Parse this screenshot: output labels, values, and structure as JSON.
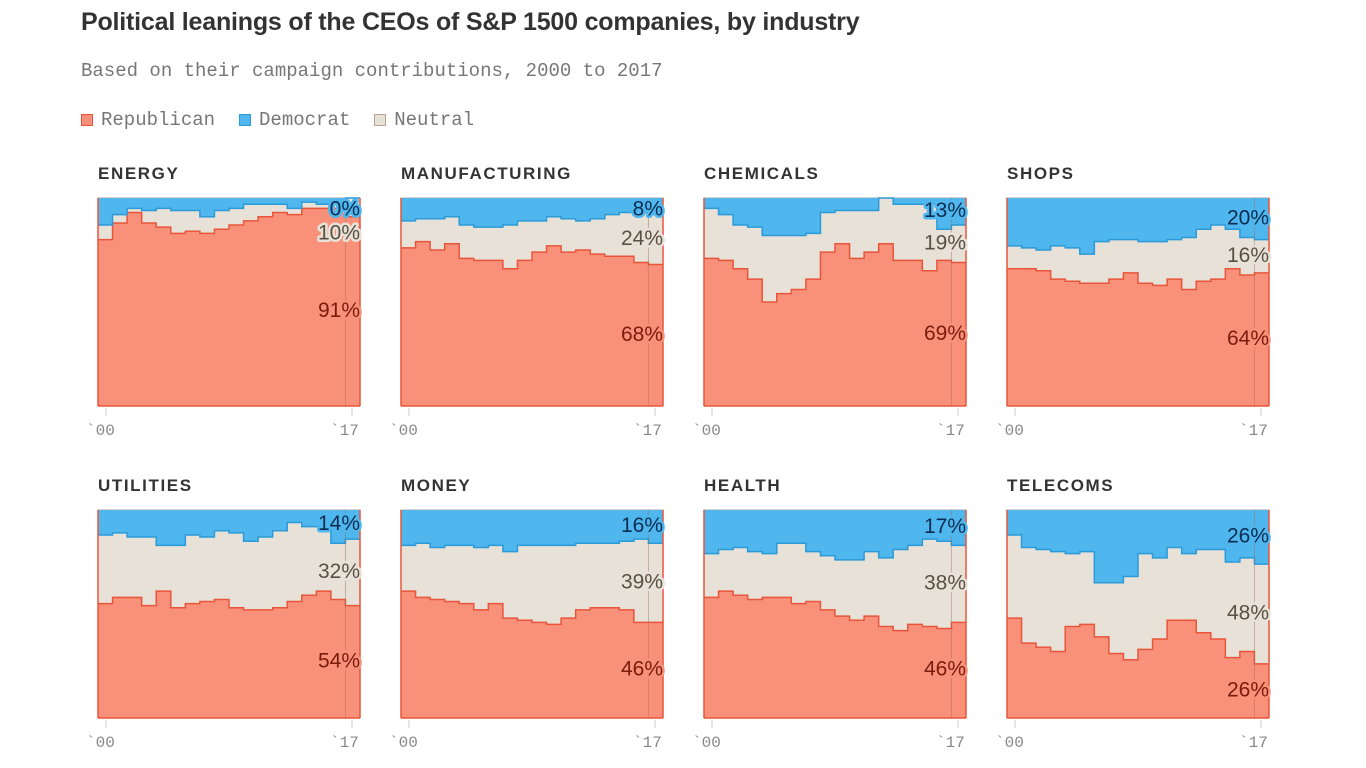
{
  "title": "Political leanings of the CEOs of S&P 1500 companies, by industry",
  "subtitle": "Based on their campaign contributions, 2000 to 2017",
  "legend": [
    {
      "label": "Republican",
      "color": "#f9907a",
      "border": "#e8553a"
    },
    {
      "label": "Democrat",
      "color": "#4fb6ee",
      "border": "#2a9ad8"
    },
    {
      "label": "Neutral",
      "color": "#e8e1d8",
      "border": "#b5a692"
    }
  ],
  "chart_data": {
    "type": "area",
    "stacked": true,
    "step": true,
    "x": [
      2000,
      2001,
      2002,
      2003,
      2004,
      2005,
      2006,
      2007,
      2008,
      2009,
      2010,
      2011,
      2012,
      2013,
      2014,
      2015,
      2016,
      2017
    ],
    "x_tick_labels": [
      "`00",
      "`17"
    ],
    "ylim": [
      0,
      100
    ],
    "unit": "%",
    "series_order": [
      "Republican",
      "Neutral",
      "Democrat"
    ],
    "panels": [
      {
        "title": "ENERGY",
        "republican": [
          80,
          88,
          93,
          88,
          86,
          83,
          84,
          83,
          85,
          87,
          89,
          91,
          93,
          92,
          95,
          95,
          95,
          91
        ],
        "democrat": [
          13,
          8,
          5,
          6,
          5,
          6,
          6,
          9,
          6,
          5,
          3,
          3,
          3,
          5,
          2,
          3,
          3,
          0
        ],
        "labels": {
          "democrat": "0%",
          "neutral": "10%",
          "republican": "91%"
        }
      },
      {
        "title": "MANUFACTURING",
        "republican": [
          76,
          79,
          75,
          78,
          71,
          70,
          70,
          66,
          70,
          74,
          77,
          74,
          75,
          73,
          72,
          72,
          69,
          68
        ],
        "democrat": [
          11,
          10,
          10,
          9,
          13,
          14,
          14,
          13,
          11,
          11,
          9,
          10,
          11,
          10,
          8,
          7,
          7,
          8
        ],
        "labels": {
          "democrat": "8%",
          "neutral": "24%",
          "republican": "68%"
        }
      },
      {
        "title": "CHEMICALS",
        "republican": [
          71,
          70,
          66,
          61,
          50,
          54,
          56,
          61,
          74,
          78,
          71,
          74,
          78,
          70,
          70,
          65,
          70,
          69
        ],
        "democrat": [
          5,
          8,
          13,
          14,
          18,
          18,
          18,
          17,
          7,
          6,
          6,
          6,
          0,
          3,
          3,
          3,
          15,
          13
        ],
        "labels": {
          "democrat": "13%",
          "neutral": "19%",
          "republican": "69%"
        }
      },
      {
        "title": "SHOPS",
        "republican": [
          66,
          66,
          65,
          61,
          60,
          59,
          59,
          61,
          64,
          59,
          58,
          61,
          56,
          60,
          61,
          66,
          63,
          64
        ],
        "democrat": [
          23,
          24,
          25,
          23,
          24,
          27,
          21,
          20,
          20,
          21,
          21,
          20,
          19,
          15,
          13,
          15,
          19,
          20
        ],
        "labels": {
          "democrat": "20%",
          "neutral": "16%",
          "republican": "64%"
        }
      },
      {
        "title": "UTILITIES",
        "republican": [
          55,
          58,
          58,
          54,
          61,
          53,
          55,
          56,
          57,
          53,
          52,
          52,
          53,
          56,
          59,
          61,
          57,
          54
        ],
        "democrat": [
          12,
          11,
          13,
          13,
          17,
          17,
          12,
          13,
          10,
          11,
          15,
          13,
          10,
          6,
          8,
          8,
          16,
          14
        ],
        "labels": {
          "democrat": "14%",
          "neutral": "32%",
          "republican": "54%"
        }
      },
      {
        "title": "MONEY",
        "republican": [
          61,
          58,
          57,
          56,
          55,
          52,
          55,
          48,
          47,
          46,
          45,
          48,
          52,
          53,
          53,
          52,
          46,
          46
        ],
        "democrat": [
          17,
          16,
          18,
          17,
          17,
          18,
          17,
          20,
          17,
          17,
          17,
          17,
          16,
          16,
          16,
          15,
          14,
          16
        ],
        "labels": {
          "democrat": "16%",
          "neutral": "39%",
          "republican": "46%"
        }
      },
      {
        "title": "HEALTH",
        "republican": [
          58,
          61,
          59,
          57,
          58,
          58,
          55,
          56,
          52,
          49,
          47,
          49,
          44,
          42,
          45,
          44,
          43,
          46
        ],
        "democrat": [
          21,
          19,
          18,
          20,
          21,
          16,
          16,
          20,
          22,
          24,
          24,
          20,
          23,
          19,
          17,
          14,
          15,
          17
        ],
        "labels": {
          "democrat": "17%",
          "neutral": "38%",
          "republican": "46%"
        }
      },
      {
        "title": "TELECOMS",
        "republican": [
          48,
          36,
          34,
          32,
          44,
          45,
          39,
          31,
          28,
          33,
          38,
          47,
          47,
          41,
          38,
          29,
          32,
          26
        ],
        "democrat": [
          12,
          18,
          19,
          20,
          21,
          20,
          35,
          35,
          32,
          21,
          23,
          18,
          21,
          19,
          19,
          25,
          23,
          26
        ],
        "labels": {
          "democrat": "26%",
          "neutral": "48%",
          "republican": "26%"
        }
      }
    ]
  }
}
